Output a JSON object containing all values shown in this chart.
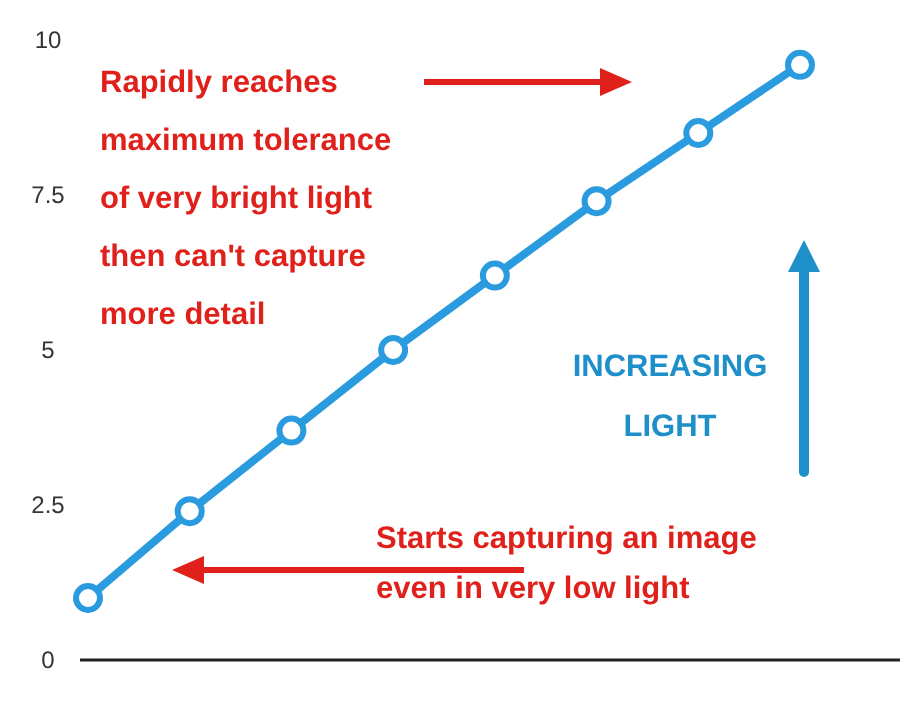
{
  "chart_data": {
    "type": "line",
    "categories": [
      null,
      null,
      null,
      null,
      null,
      null,
      null,
      null
    ],
    "series": [
      {
        "color": "#2b9be0",
        "values": [
          1,
          2.4,
          3.7,
          5,
          6.2,
          7.4,
          8.5,
          9.6
        ]
      }
    ],
    "ylim": [
      0,
      10
    ],
    "yticks": [
      0,
      2.5,
      5,
      7.5,
      10
    ],
    "grid": false,
    "marker": "circle",
    "line_style": "solid",
    "annotations": [
      "Rapidly reaches\nmaximum tolerance\nof very bright light\nthen can't capture\nmore detail",
      "INCREASING\nLIGHT",
      "Starts capturing an image\neven in very low light"
    ]
  }
}
